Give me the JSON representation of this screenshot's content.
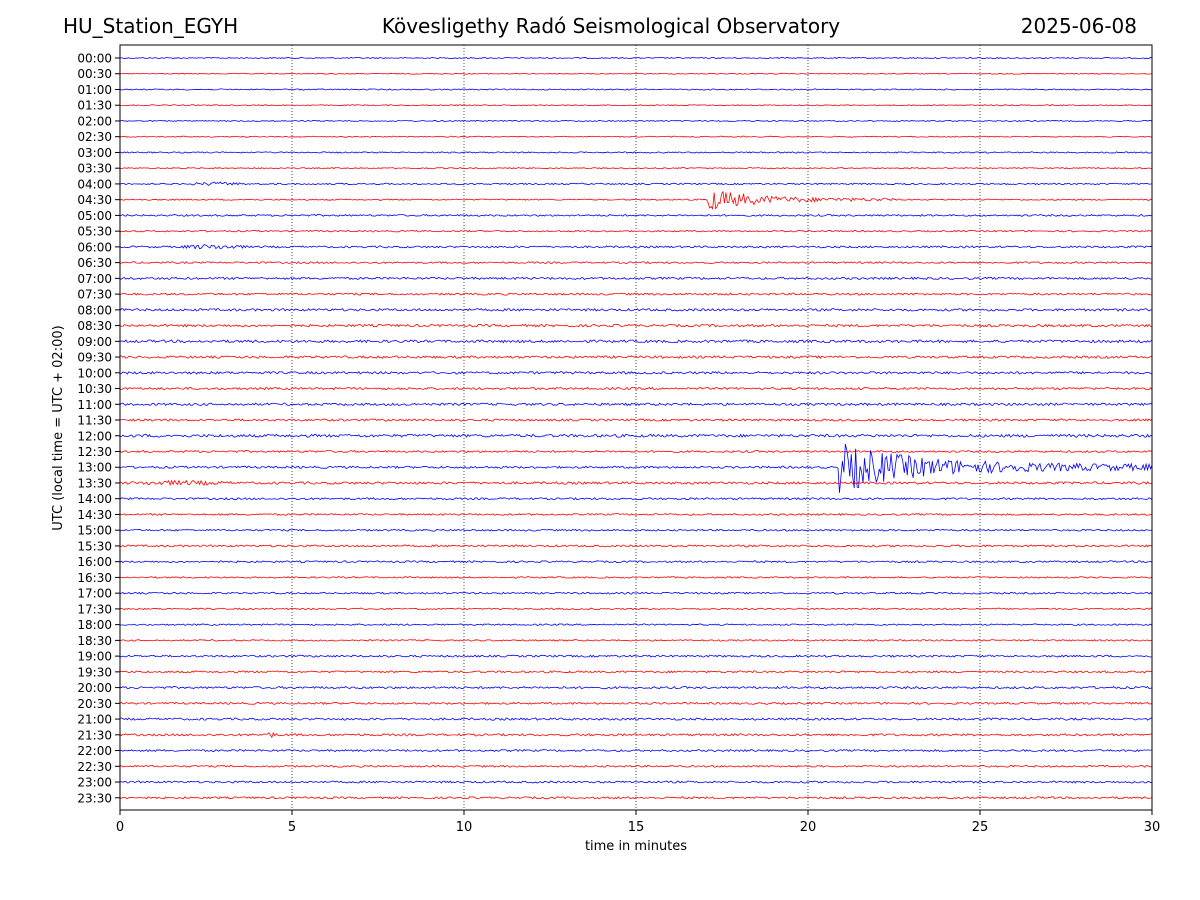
{
  "header": {
    "station": "HU_Station_EGYH",
    "title": "Kövesligethy Radó Seismological Observatory",
    "date": "2025-06-08"
  },
  "chart_data": {
    "type": "line",
    "title": "Kövesligethy Radó Seismological Observatory",
    "xlabel": "time in minutes",
    "ylabel": "UTC (local time = UTC + 02:00)",
    "xlim": [
      0,
      30
    ],
    "x_ticks": [
      0,
      5,
      10,
      15,
      20,
      25,
      30
    ],
    "grid": "vertical dotted at x ticks",
    "colors": {
      "even_rows": "#0000ff",
      "odd_rows": "#ff0000"
    },
    "rows": [
      {
        "label": "00:00",
        "noise": 0.5,
        "events": []
      },
      {
        "label": "00:30",
        "noise": 0.45,
        "events": []
      },
      {
        "label": "01:00",
        "noise": 0.55,
        "events": []
      },
      {
        "label": "01:30",
        "noise": 0.5,
        "events": []
      },
      {
        "label": "02:00",
        "noise": 0.5,
        "events": []
      },
      {
        "label": "02:30",
        "noise": 0.5,
        "events": []
      },
      {
        "label": "03:00",
        "noise": 0.6,
        "events": []
      },
      {
        "label": "03:30",
        "noise": 0.55,
        "events": []
      },
      {
        "label": "04:00",
        "noise": 0.7,
        "events": [
          {
            "start": 2.0,
            "end": 3.6,
            "amp": 2
          }
        ]
      },
      {
        "label": "04:30",
        "noise": 0.6,
        "events": [
          {
            "start": 17.1,
            "end": 22.5,
            "amp": 12
          }
        ]
      },
      {
        "label": "05:00",
        "noise": 0.8,
        "events": []
      },
      {
        "label": "05:30",
        "noise": 0.7,
        "events": []
      },
      {
        "label": "06:00",
        "noise": 0.9,
        "events": [
          {
            "start": 1.6,
            "end": 3.8,
            "amp": 2.5
          }
        ]
      },
      {
        "label": "06:30",
        "noise": 0.8,
        "events": []
      },
      {
        "label": "07:00",
        "noise": 1.0,
        "events": []
      },
      {
        "label": "07:30",
        "noise": 0.9,
        "events": []
      },
      {
        "label": "08:00",
        "noise": 1.1,
        "events": []
      },
      {
        "label": "08:30",
        "noise": 1.1,
        "events": []
      },
      {
        "label": "09:00",
        "noise": 1.2,
        "events": []
      },
      {
        "label": "09:30",
        "noise": 1.1,
        "events": []
      },
      {
        "label": "10:00",
        "noise": 1.1,
        "events": []
      },
      {
        "label": "10:30",
        "noise": 1.0,
        "events": []
      },
      {
        "label": "11:00",
        "noise": 1.1,
        "events": []
      },
      {
        "label": "11:30",
        "noise": 1.0,
        "events": []
      },
      {
        "label": "12:00",
        "noise": 1.3,
        "events": []
      },
      {
        "label": "12:30",
        "noise": 0.9,
        "events": []
      },
      {
        "label": "13:00",
        "noise": 1.0,
        "events": [
          {
            "start": 20.9,
            "end": 30.0,
            "amp": 26
          }
        ]
      },
      {
        "label": "13:30",
        "noise": 1.1,
        "events": [
          {
            "start": 0.0,
            "end": 3.5,
            "amp": 2.5
          }
        ]
      },
      {
        "label": "14:00",
        "noise": 0.9,
        "events": []
      },
      {
        "label": "14:30",
        "noise": 0.8,
        "events": []
      },
      {
        "label": "15:00",
        "noise": 0.8,
        "events": []
      },
      {
        "label": "15:30",
        "noise": 0.9,
        "events": []
      },
      {
        "label": "16:00",
        "noise": 0.8,
        "events": []
      },
      {
        "label": "16:30",
        "noise": 0.7,
        "events": []
      },
      {
        "label": "17:00",
        "noise": 0.8,
        "events": []
      },
      {
        "label": "17:30",
        "noise": 0.7,
        "events": []
      },
      {
        "label": "18:00",
        "noise": 0.7,
        "events": []
      },
      {
        "label": "18:30",
        "noise": 0.7,
        "events": []
      },
      {
        "label": "19:00",
        "noise": 0.9,
        "events": []
      },
      {
        "label": "19:30",
        "noise": 0.9,
        "events": []
      },
      {
        "label": "20:00",
        "noise": 1.0,
        "events": []
      },
      {
        "label": "20:30",
        "noise": 0.9,
        "events": []
      },
      {
        "label": "21:00",
        "noise": 1.0,
        "events": []
      },
      {
        "label": "21:30",
        "noise": 1.0,
        "events": [
          {
            "start": 4.1,
            "end": 4.6,
            "amp": 3
          }
        ]
      },
      {
        "label": "22:00",
        "noise": 0.9,
        "events": []
      },
      {
        "label": "22:30",
        "noise": 0.8,
        "events": []
      },
      {
        "label": "23:00",
        "noise": 0.9,
        "events": []
      },
      {
        "label": "23:30",
        "noise": 0.9,
        "events": []
      }
    ]
  }
}
